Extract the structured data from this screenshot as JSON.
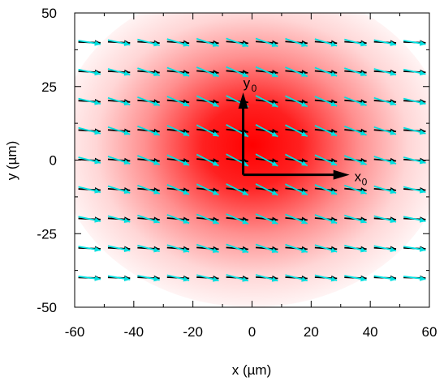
{
  "chart_data": {
    "type": "vector-field-heatmap",
    "xlabel": "x (µm)",
    "ylabel": "y (µm)",
    "xlim": [
      -60,
      60
    ],
    "ylim": [
      -50,
      50
    ],
    "x_ticks": [
      {
        "value": -60,
        "label": "-60"
      },
      {
        "value": -40,
        "label": "-40"
      },
      {
        "value": -20,
        "label": "-20"
      },
      {
        "value": 0,
        "label": "0"
      },
      {
        "value": 20,
        "label": "20"
      },
      {
        "value": 40,
        "label": "40"
      },
      {
        "value": 60,
        "label": "60"
      }
    ],
    "y_ticks": [
      {
        "value": 50,
        "label": "50"
      },
      {
        "value": 25,
        "label": "25"
      },
      {
        "value": 0,
        "label": "0"
      },
      {
        "value": -25,
        "label": "-25"
      },
      {
        "value": -50,
        "label": "-50"
      }
    ],
    "grid": false,
    "heatmap": {
      "colormap": "white-to-red",
      "peak_color": "#ff0000",
      "center": [
        0,
        5
      ],
      "sigma_x": 30,
      "sigma_y": 25
    },
    "arrow_grid": {
      "x": [
        -55,
        -45,
        -35,
        -25,
        -15,
        -5,
        5,
        15,
        25,
        35,
        45,
        55
      ],
      "y": [
        40,
        30,
        20,
        10,
        0,
        -10,
        -20,
        -30,
        -40
      ]
    },
    "vector_series": [
      {
        "color": "#000000",
        "length": 7.5,
        "tilt": 0.12
      },
      {
        "color": "#00e0e0",
        "length": 7.5,
        "tilt": 0.55
      }
    ],
    "axes_annotation": {
      "origin": [
        -3,
        -5
      ],
      "x_end": [
        33,
        -5
      ],
      "y_end": [
        -3,
        23
      ],
      "x_label": "x",
      "x_sub": "0",
      "y_label": "y",
      "y_sub": "0"
    }
  }
}
